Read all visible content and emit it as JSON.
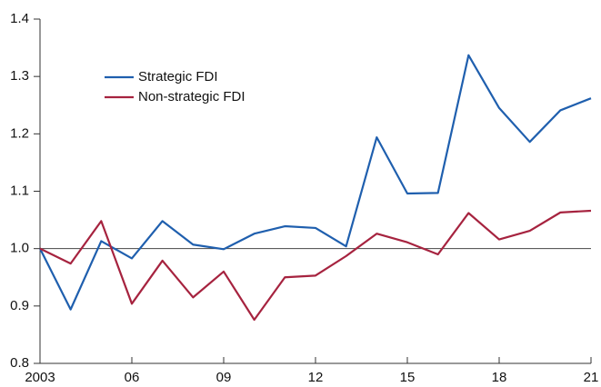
{
  "chart_data": {
    "type": "line",
    "x": [
      2003,
      2004,
      2005,
      2006,
      2007,
      2008,
      2009,
      2010,
      2011,
      2012,
      2013,
      2014,
      2015,
      2016,
      2017,
      2018,
      2019,
      2020,
      2021
    ],
    "series": [
      {
        "name": "Strategic FDI",
        "color": "#1f5fae",
        "values": [
          1.0,
          0.894,
          1.013,
          0.983,
          1.048,
          1.007,
          0.999,
          1.026,
          1.039,
          1.036,
          1.004,
          1.194,
          1.096,
          1.097,
          1.337,
          1.245,
          1.186,
          1.241,
          1.262
        ]
      },
      {
        "name": "Non-strategic FDI",
        "color": "#a6233f",
        "values": [
          1.0,
          0.974,
          1.048,
          0.904,
          0.979,
          0.915,
          0.96,
          0.876,
          0.95,
          0.953,
          0.987,
          1.026,
          1.011,
          0.99,
          1.062,
          1.016,
          1.031,
          1.063,
          1.066
        ]
      }
    ],
    "xlim": [
      2003,
      2021
    ],
    "xticks": [
      {
        "value": 2003,
        "label": "2003"
      },
      {
        "value": 2006,
        "label": "06"
      },
      {
        "value": 2009,
        "label": "09"
      },
      {
        "value": 2012,
        "label": "12"
      },
      {
        "value": 2015,
        "label": "15"
      },
      {
        "value": 2018,
        "label": "18"
      },
      {
        "value": 2021,
        "label": "21"
      }
    ],
    "ylim": [
      0.8,
      1.4
    ],
    "yticks": [
      0.8,
      0.9,
      {
        "value": 1,
        "label": "1.0"
      },
      1.1,
      1.2,
      1.3,
      1.4
    ],
    "reference_line": 1,
    "legend": "upper-left"
  }
}
